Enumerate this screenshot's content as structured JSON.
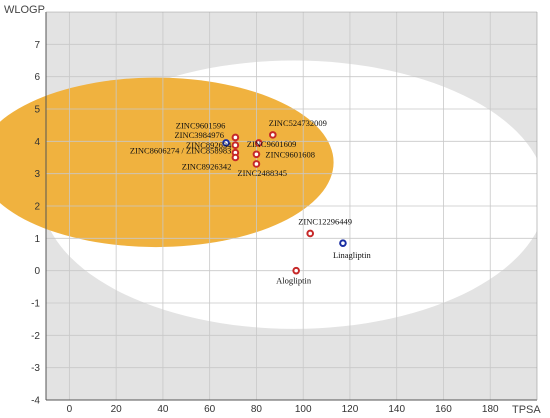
{
  "chart_data": {
    "type": "scatter",
    "title": "",
    "xlabel": "TPSA",
    "ylabel": "WLOGP",
    "xlim": [
      -10,
      200
    ],
    "ylim": [
      -4,
      8
    ],
    "xticks": [
      "0",
      "20",
      "40",
      "60",
      "80",
      "100",
      "120",
      "140",
      "160",
      "180"
    ],
    "yticks": [
      "-4",
      "-3",
      "-2",
      "-1",
      "0",
      "1",
      "2",
      "3",
      "4",
      "5",
      "6",
      "7"
    ],
    "grid": true,
    "background_color": "#e3e3e3",
    "regions": [
      {
        "kind": "white-ellipse",
        "color": "#ffffff",
        "center": [
          96,
          2.35
        ],
        "radii": [
          108,
          4.15
        ]
      },
      {
        "kind": "yolk-circle",
        "color": "#f0b23f",
        "center": [
          37,
          3.35
        ],
        "radii": [
          76,
          2.62
        ]
      }
    ],
    "points": [
      {
        "label": "ZINC9601596",
        "x": 71,
        "y": 4.12,
        "color": "#c62828"
      },
      {
        "label": "ZINC3984976",
        "x": 67,
        "y": 3.95,
        "color": "#1a2fa3"
      },
      {
        "label": "ZINC892634",
        "x": 71,
        "y": 3.88,
        "color": "#c62828"
      },
      {
        "label": "ZINC8606274 / ZINC858983",
        "x": 71,
        "y": 3.65,
        "color": "#c62828"
      },
      {
        "label": "ZINC8926342",
        "x": 71,
        "y": 3.5,
        "color": "#c62828"
      },
      {
        "label": "ZINC524732009",
        "x": 87,
        "y": 4.2,
        "color": "#c62828"
      },
      {
        "label": "ZINC9601609",
        "x": 81,
        "y": 3.95,
        "color": "#c62828"
      },
      {
        "label": "ZINC9601608",
        "x": 80,
        "y": 3.6,
        "color": "#c62828"
      },
      {
        "label": "ZINC2488345",
        "x": 80,
        "y": 3.3,
        "color": "#c62828"
      },
      {
        "label": "ZINC12296449",
        "x": 103,
        "y": 1.15,
        "color": "#c62828"
      },
      {
        "label": "Linagliptin",
        "x": 117,
        "y": 0.85,
        "color": "#1a2fa3"
      },
      {
        "label": "Alogliptin",
        "x": 97,
        "y": 0.0,
        "color": "#c62828"
      }
    ]
  }
}
